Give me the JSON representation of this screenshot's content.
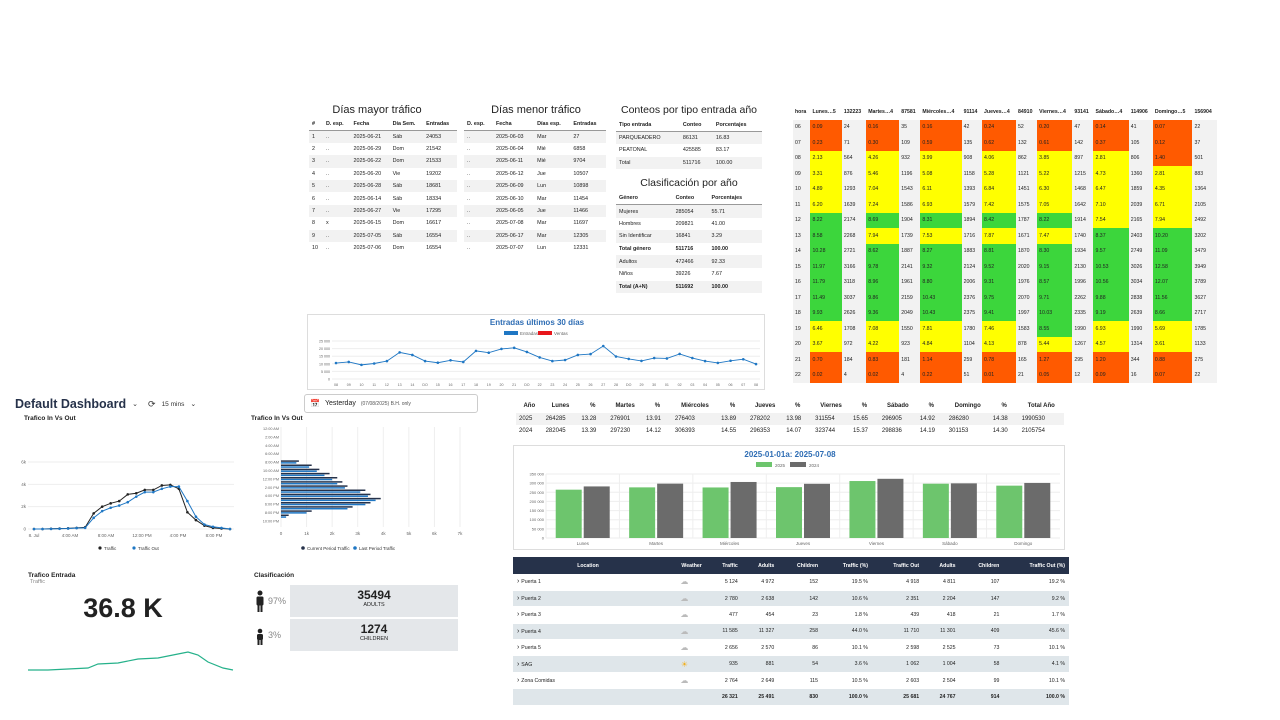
{
  "colors": {
    "high": "#ff5a00",
    "mid": "#ffff00",
    "low": "#3cd63c",
    "navy": "#26324a",
    "blue": "#1f77c4",
    "green": "#6dc56d",
    "gray": "#6b6b6b",
    "teal": "#25b18a"
  },
  "top_days": {
    "title": "Días mayor tráfico",
    "headers": [
      "#",
      "D. esp.",
      "Fecha",
      "Día Sem.",
      "Entradas"
    ],
    "rows": [
      [
        "1",
        "..",
        "2025-06-21",
        "Sáb",
        "24053"
      ],
      [
        "2",
        "..",
        "2025-06-29",
        "Dom",
        "21542"
      ],
      [
        "3",
        "..",
        "2025-06-22",
        "Dom",
        "21533"
      ],
      [
        "4",
        "..",
        "2025-06-20",
        "Vie",
        "19202"
      ],
      [
        "5",
        "..",
        "2025-06-28",
        "Sáb",
        "18681"
      ],
      [
        "6",
        "..",
        "2025-06-14",
        "Sáb",
        "18334"
      ],
      [
        "7",
        "..",
        "2025-06-27",
        "Vie",
        "17295"
      ],
      [
        "8",
        "x",
        "2025-06-15",
        "Dom",
        "16617"
      ],
      [
        "9",
        "..",
        "2025-07-05",
        "Sáb",
        "16554"
      ],
      [
        "10",
        "..",
        "2025-07-06",
        "Dom",
        "16554"
      ]
    ]
  },
  "low_days": {
    "title": "Días menor tráfico",
    "headers": [
      "D. esp.",
      "Fecha",
      "Días esp.",
      "Entradas"
    ],
    "rows": [
      [
        "..",
        "2025-06-03",
        "Mar",
        "27"
      ],
      [
        "..",
        "2025-06-04",
        "Mié",
        "6858"
      ],
      [
        "..",
        "2025-06-11",
        "Mié",
        "9704"
      ],
      [
        "..",
        "2025-06-12",
        "Jue",
        "10507"
      ],
      [
        "..",
        "2025-06-09",
        "Lun",
        "10898"
      ],
      [
        "..",
        "2025-06-10",
        "Mar",
        "11454"
      ],
      [
        "..",
        "2025-06-05",
        "Jue",
        "11466"
      ],
      [
        "..",
        "2025-07-08",
        "Mar",
        "11697"
      ],
      [
        "..",
        "2025-06-17",
        "Mar",
        "12305"
      ],
      [
        "..",
        "2025-07-07",
        "Lun",
        "12331"
      ]
    ]
  },
  "entry_type": {
    "title": "Conteos por tipo entrada año",
    "headers": [
      "Tipo entrada",
      "Conteo",
      "Porcentajes"
    ],
    "rows": [
      [
        "PARQUEADERO",
        "86131",
        "16.83"
      ],
      [
        "PEATONAL",
        "425585",
        "83.17"
      ],
      [
        "Total",
        "511716",
        "100.00"
      ]
    ]
  },
  "classification": {
    "title": "Clasificación por año",
    "headers": [
      "Género",
      "Conteo",
      "Porcentajes"
    ],
    "rows": [
      [
        "Mujeres",
        "285054",
        "55.71"
      ],
      [
        "Hombres",
        "209821",
        "41.00"
      ],
      [
        "Sin Identificar",
        "16841",
        "3.29"
      ],
      [
        "Total género",
        "511716",
        "100.00"
      ],
      [
        "Adultos",
        "472466",
        "92.33"
      ],
      [
        "Niños",
        "39226",
        "7.67"
      ],
      [
        "Total (A+N)",
        "511692",
        "100.00"
      ]
    ]
  },
  "heatmap": {
    "headers": [
      "hora",
      "Lunes…5",
      "132223",
      "Martes…4",
      "87581",
      "Miércoles…4",
      "91114",
      "Jueves…4",
      "84910",
      "Viernes…4",
      "93141",
      "Sábado…4",
      "114906",
      "Domingo…5",
      "156904"
    ],
    "rows": [
      [
        "06",
        "0.09",
        "24",
        "0.16",
        "35",
        "0.16",
        "42",
        "0.24",
        "52",
        "0.20",
        "47",
        "0.14",
        "41",
        "0.07",
        "22"
      ],
      [
        "07",
        "0.23",
        "71",
        "0.30",
        "109",
        "0.59",
        "135",
        "0.62",
        "132",
        "0.61",
        "142",
        "0.37",
        "105",
        "0.12",
        "37"
      ],
      [
        "08",
        "2.13",
        "564",
        "4.26",
        "932",
        "3.99",
        "908",
        "4.06",
        "862",
        "3.85",
        "897",
        "2.81",
        "806",
        "1.40",
        "501"
      ],
      [
        "09",
        "3.31",
        "876",
        "5.46",
        "1196",
        "5.08",
        "1158",
        "5.28",
        "1121",
        "5.22",
        "1215",
        "4.73",
        "1360",
        "2.81",
        "883"
      ],
      [
        "10",
        "4.89",
        "1293",
        "7.04",
        "1543",
        "6.11",
        "1393",
        "6.84",
        "1451",
        "6.30",
        "1468",
        "6.47",
        "1859",
        "4.35",
        "1364"
      ],
      [
        "11",
        "6.20",
        "1639",
        "7.24",
        "1586",
        "6.93",
        "1579",
        "7.42",
        "1575",
        "7.05",
        "1642",
        "7.10",
        "2039",
        "6.71",
        "2105"
      ],
      [
        "12",
        "8.22",
        "2174",
        "8.69",
        "1904",
        "8.31",
        "1894",
        "8.42",
        "1787",
        "8.22",
        "1914",
        "7.54",
        "2165",
        "7.94",
        "2492"
      ],
      [
        "13",
        "8.58",
        "2268",
        "7.94",
        "1739",
        "7.53",
        "1716",
        "7.87",
        "1671",
        "7.47",
        "1740",
        "8.37",
        "2403",
        "10.20",
        "3202"
      ],
      [
        "14",
        "10.28",
        "2721",
        "8.62",
        "1887",
        "8.27",
        "1883",
        "8.81",
        "1870",
        "8.30",
        "1934",
        "9.57",
        "2749",
        "11.09",
        "3479"
      ],
      [
        "15",
        "11.97",
        "3166",
        "9.78",
        "2141",
        "9.32",
        "2124",
        "9.52",
        "2020",
        "9.15",
        "2130",
        "10.53",
        "3026",
        "12.58",
        "3949"
      ],
      [
        "16",
        "11.79",
        "3118",
        "8.96",
        "1961",
        "8.80",
        "2006",
        "9.31",
        "1976",
        "8.57",
        "1996",
        "10.56",
        "3034",
        "12.07",
        "3789"
      ],
      [
        "17",
        "11.49",
        "3037",
        "9.86",
        "2159",
        "10.43",
        "2376",
        "9.75",
        "2070",
        "9.71",
        "2262",
        "9.88",
        "2838",
        "11.56",
        "3627"
      ],
      [
        "18",
        "9.93",
        "2626",
        "9.36",
        "2049",
        "10.43",
        "2375",
        "9.41",
        "1997",
        "10.03",
        "2335",
        "9.19",
        "2639",
        "8.66",
        "2717"
      ],
      [
        "19",
        "6.46",
        "1708",
        "7.08",
        "1550",
        "7.81",
        "1780",
        "7.46",
        "1583",
        "8.55",
        "1990",
        "6.93",
        "1990",
        "5.69",
        "1785"
      ],
      [
        "20",
        "3.67",
        "972",
        "4.22",
        "923",
        "4.84",
        "1104",
        "4.13",
        "878",
        "5.44",
        "1267",
        "4.57",
        "1314",
        "3.61",
        "1133"
      ],
      [
        "21",
        "0.70",
        "184",
        "0.83",
        "181",
        "1.14",
        "259",
        "0.78",
        "165",
        "1.27",
        "295",
        "1.20",
        "344",
        "0.88",
        "275"
      ],
      [
        "22",
        "0.02",
        "4",
        "0.02",
        "4",
        "0.22",
        "51",
        "0.01",
        "21",
        "0.05",
        "12",
        "0.09",
        "16",
        "0.07",
        "22"
      ]
    ]
  },
  "line30": {
    "title": "Entradas últimos 30 días",
    "legend": [
      "Entradas",
      "Ventas"
    ],
    "yticks": [
      "25 000",
      "20 000",
      "15 000",
      "10 000",
      "5 000",
      "0"
    ]
  },
  "dashboard": {
    "title": "Default Dashboard",
    "refresh": "15 mins",
    "date_label": "Yesterday",
    "date_detail": "(07/08/2025) B.H. only",
    "traffic_chart_title": "Trafico In Vs Out",
    "traffic_legend": [
      "Traffic",
      "Traffic Out"
    ],
    "traffic_xticks": [
      "8. Jul",
      "4:00 AM",
      "8:00 AM",
      "12:00 PM",
      "4:00 PM",
      "8:00 PM"
    ],
    "traffic_yticks": [
      "6k",
      "4k",
      "2k",
      "0"
    ],
    "hbar_title": "Trafico In Vs Out",
    "hbar_legend": [
      "Current Period Traffic",
      "Last Period Traffic"
    ],
    "hbar_xticks": [
      "0",
      "1k",
      "2k",
      "3k",
      "4k",
      "5k",
      "6k",
      "7k"
    ],
    "hbar_yticks": [
      "12:00 AM",
      "2:00 AM",
      "4:00 AM",
      "6:00 AM",
      "8:00 AM",
      "10:00 AM",
      "12:00 PM",
      "2:00 PM",
      "4:00 PM",
      "6:00 PM",
      "8:00 PM",
      "10:00 PM"
    ],
    "entry_title": "Trafico Entrada",
    "entry_sub": "Traffic",
    "entry_value": "36.8 K",
    "class_title": "Clasificación",
    "adults_pct": "97%",
    "adults_value": "35494",
    "adults_label": "ADULTS",
    "children_pct": "3%",
    "children_value": "1274",
    "children_label": "CHILDREN"
  },
  "year_table": {
    "headers": [
      "Año",
      "Lunes",
      "%",
      "Martes",
      "%",
      "Miércoles",
      "%",
      "Jueves",
      "%",
      "Viernes",
      "%",
      "Sábado",
      "%",
      "Domingo",
      "%",
      "Total Año"
    ],
    "rows": [
      [
        "2025",
        "264285",
        "13.28",
        "276901",
        "13.91",
        "276403",
        "13.89",
        "278202",
        "13.98",
        "311554",
        "15.65",
        "296905",
        "14.92",
        "286280",
        "14.38",
        "1990530"
      ],
      [
        "2024",
        "282045",
        "13.39",
        "297230",
        "14.12",
        "306393",
        "14.55",
        "296353",
        "14.07",
        "323744",
        "15.37",
        "298836",
        "14.19",
        "301153",
        "14.30",
        "2105754"
      ]
    ]
  },
  "bar_chart": {
    "title": "2025-01-01a: 2025-07-08",
    "legend": [
      "2025",
      "2024"
    ],
    "yticks": [
      "350 000",
      "300 000",
      "250 000",
      "200 000",
      "150 000",
      "100 000",
      "50 000",
      "0"
    ]
  },
  "chart_data": [
    {
      "type": "line",
      "title": "Entradas últimos 30 días",
      "x": [
        "08",
        "09",
        "10",
        "11",
        "12",
        "13",
        "14",
        "DO",
        "15",
        "16",
        "17",
        "18",
        "19",
        "20",
        "21",
        "DO",
        "22",
        "23",
        "24",
        "25",
        "26",
        "27",
        "28",
        "DO",
        "29",
        "30",
        "01",
        "02",
        "03",
        "04",
        "05",
        "06",
        "07",
        "08"
      ],
      "series": [
        {
          "name": "Entradas",
          "values": [
            10500,
            11200,
            9300,
            10200,
            11800,
            17500,
            15800,
            11800,
            10700,
            12300,
            11200,
            18500,
            17300,
            19800,
            20500,
            17800,
            14200,
            11800,
            12500,
            15800,
            16400,
            21700,
            14800,
            13200,
            11900,
            13800,
            13500,
            16500,
            13800,
            11800,
            10600,
            12000,
            13000,
            9800
          ]
        }
      ],
      "ylim": [
        0,
        25000
      ]
    },
    {
      "type": "line",
      "title": "Trafico In Vs Out",
      "x": [
        "0h",
        "1h",
        "2h",
        "3h",
        "4h",
        "5h",
        "6h",
        "7h",
        "8h",
        "9h",
        "10h",
        "11h",
        "12h",
        "13h",
        "14h",
        "15h",
        "16h",
        "17h",
        "18h",
        "19h",
        "20h",
        "21h",
        "22h",
        "23h"
      ],
      "series": [
        {
          "name": "Traffic",
          "values": [
            0,
            0,
            20,
            40,
            60,
            100,
            150,
            1400,
            2000,
            2300,
            2500,
            3100,
            3200,
            3500,
            3500,
            3900,
            3950,
            3600,
            1500,
            800,
            300,
            100,
            50,
            0
          ]
        },
        {
          "name": "Traffic Out",
          "values": [
            0,
            0,
            10,
            20,
            40,
            80,
            100,
            1000,
            1600,
            1900,
            2100,
            2400,
            2900,
            3300,
            3300,
            3600,
            3800,
            3800,
            2500,
            1100,
            400,
            200,
            100,
            0
          ]
        }
      ],
      "ylim": [
        0,
        6000
      ]
    },
    {
      "type": "bar",
      "title": "Trafico In Vs Out",
      "orientation": "horizontal",
      "categories": [
        "12AM",
        "1AM",
        "2AM",
        "3AM",
        "4AM",
        "5AM",
        "6AM",
        "7AM",
        "8AM",
        "9AM",
        "10AM",
        "11AM",
        "12PM",
        "1PM",
        "2PM",
        "3PM",
        "4PM",
        "5PM",
        "6PM",
        "7PM",
        "8PM",
        "9PM",
        "10PM",
        "11PM"
      ],
      "series": [
        {
          "name": "Current Period Traffic",
          "values": [
            0,
            0,
            0,
            0,
            0,
            0,
            0,
            0,
            700,
            1200,
            1500,
            1900,
            2200,
            2400,
            2600,
            3300,
            3500,
            3900,
            3500,
            2800,
            1200,
            300,
            0,
            0
          ]
        },
        {
          "name": "Last Period Traffic",
          "values": [
            0,
            0,
            0,
            0,
            0,
            0,
            0,
            0,
            600,
            1100,
            1400,
            1700,
            2000,
            2200,
            2500,
            3100,
            3400,
            3700,
            3300,
            2600,
            1000,
            200,
            0,
            0
          ]
        }
      ],
      "xlim": [
        0,
        7000
      ]
    },
    {
      "type": "bar",
      "title": "2025-01-01a: 2025-07-08",
      "categories": [
        "Lunes",
        "Martes",
        "Miércoles",
        "Jueves",
        "Viernes",
        "Sábado",
        "Domingo"
      ],
      "series": [
        {
          "name": "2025",
          "values": [
            264285,
            276901,
            276403,
            278202,
            311554,
            296905,
            286280
          ]
        },
        {
          "name": "2024",
          "values": [
            282045,
            297230,
            306393,
            296353,
            323744,
            298836,
            301153
          ]
        }
      ],
      "ylim": [
        0,
        350000
      ]
    }
  ],
  "location_table": {
    "headers": [
      "Location",
      "Weather",
      "Traffic",
      "Adults",
      "Children",
      "Traffic (%)",
      "Traffic Out",
      "Adults",
      "Children",
      "Traffic Out (%)"
    ],
    "rows": [
      [
        "Puerta 1",
        "cloud",
        "5 124",
        "4 972",
        "152",
        "19.5 %",
        "4 918",
        "4 811",
        "107",
        "19.2 %"
      ],
      [
        "Puerta 2",
        "cloud",
        "2 780",
        "2 638",
        "142",
        "10.6 %",
        "2 351",
        "2 204",
        "147",
        "9.2 %"
      ],
      [
        "Puerta 3",
        "cloud",
        "477",
        "454",
        "23",
        "1.8 %",
        "439",
        "418",
        "21",
        "1.7 %"
      ],
      [
        "Puerta 4",
        "cloud",
        "11 585",
        "11 327",
        "258",
        "44.0 %",
        "11 710",
        "11 301",
        "409",
        "45.6 %"
      ],
      [
        "Puerta 5",
        "cloud",
        "2 656",
        "2 570",
        "86",
        "10.1 %",
        "2 598",
        "2 525",
        "73",
        "10.1 %"
      ],
      [
        "SAG",
        "sun",
        "935",
        "881",
        "54",
        "3.6 %",
        "1 062",
        "1 004",
        "58",
        "4.1 %"
      ],
      [
        "Zona Comidas",
        "cloud",
        "2 764",
        "2 649",
        "115",
        "10.5 %",
        "2 603",
        "2 504",
        "99",
        "10.1 %"
      ]
    ],
    "total": [
      "",
      "",
      "26 321",
      "25 491",
      "830",
      "100.0 %",
      "25 681",
      "24 767",
      "914",
      "100.0 %"
    ]
  }
}
